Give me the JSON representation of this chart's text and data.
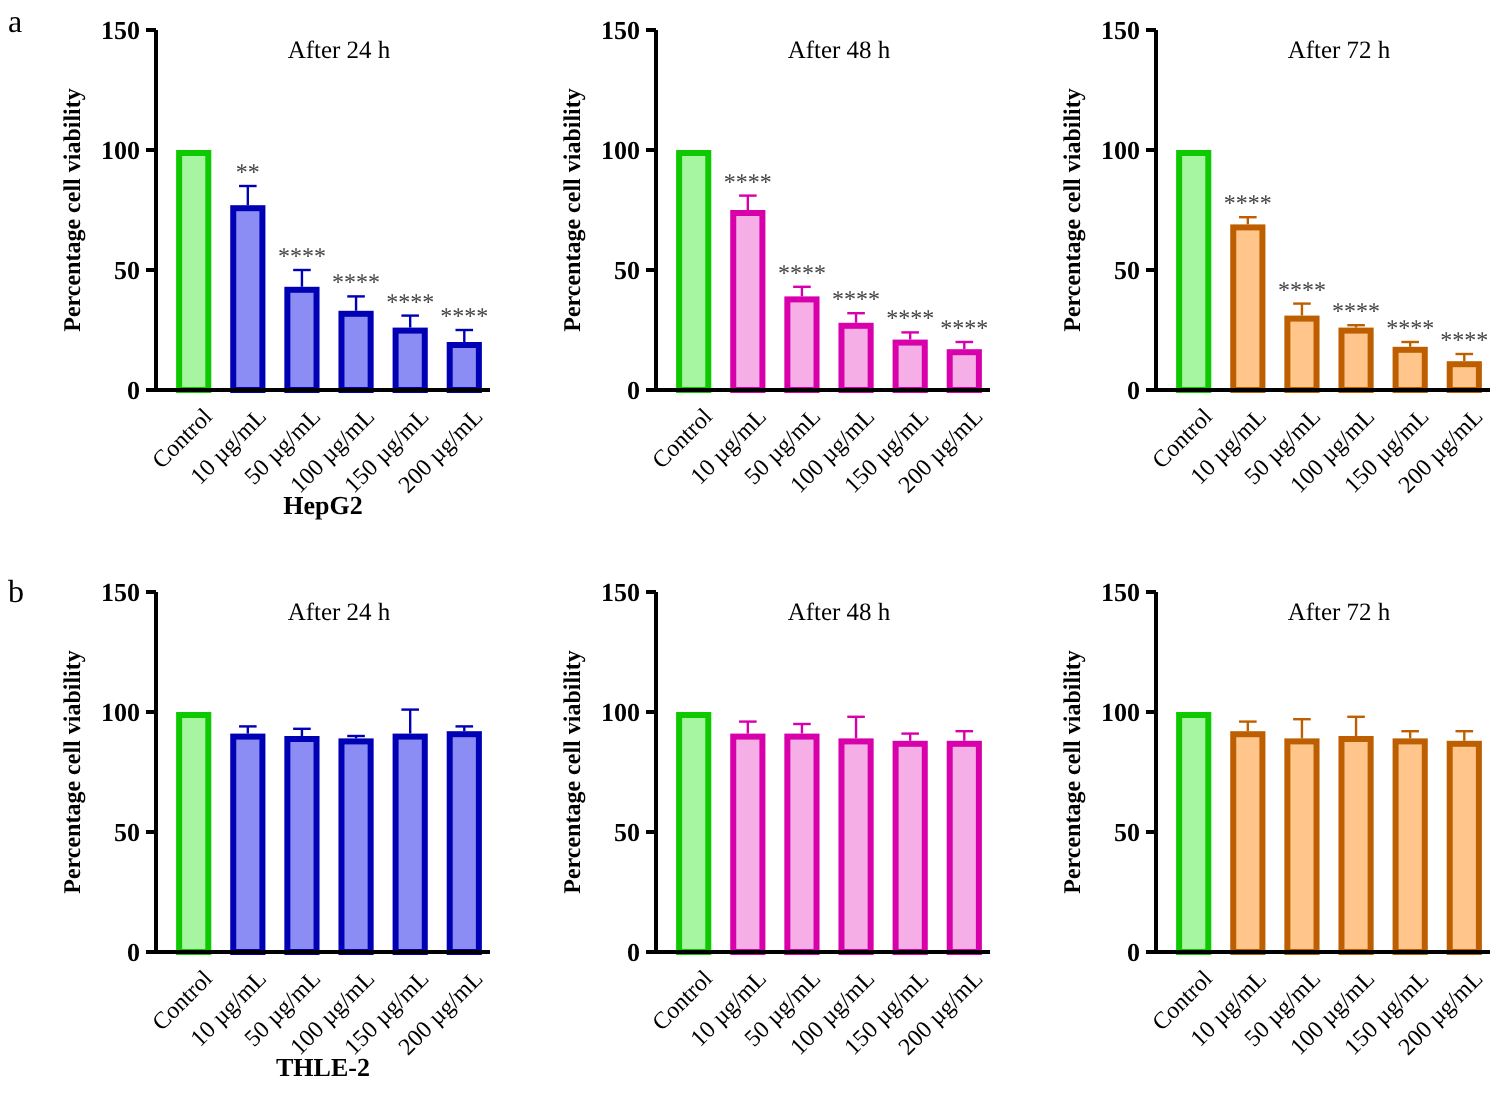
{
  "chart_data": [
    {
      "type": "bar",
      "title": "After 24 h",
      "ylabel": "Percentage cell viability",
      "categories": [
        "Control",
        "10 µg/mL",
        "50 µg/mL",
        "100 µg/mL",
        "150 µg/mL",
        "200 µg/mL"
      ],
      "values": [
        100,
        77,
        43,
        33,
        26,
        20
      ],
      "errors": [
        null,
        8,
        7,
        6,
        5,
        5
      ],
      "colors": [
        "#a6f5a0",
        "#8c8cf5",
        "#8c8cf5",
        "#8c8cf5",
        "#8c8cf5",
        "#8c8cf5"
      ],
      "ylim": [
        0,
        150
      ],
      "yticks": [
        0,
        50,
        100,
        150
      ],
      "grid": false,
      "annotations": [
        "a",
        "HepG2",
        {
          "text": "**",
          "x": "10 µg/mL",
          "y": 85
        },
        {
          "text": "****",
          "x": "50 µg/mL",
          "y": 50
        },
        {
          "text": "****",
          "x": "100 µg/mL",
          "y": 39
        },
        {
          "text": "****",
          "x": "150 µg/mL",
          "y": 31
        },
        {
          "text": "****",
          "x": "200 µg/mL",
          "y": 25
        }
      ]
    },
    {
      "type": "bar",
      "title": "After 48 h",
      "ylabel": "Percentage cell viability",
      "categories": [
        "Control",
        "10 µg/mL",
        "50 µg/mL",
        "100 µg/mL",
        "150 µg/mL",
        "200 µg/mL"
      ],
      "values": [
        100,
        75,
        39,
        28,
        21,
        17
      ],
      "errors": [
        null,
        6,
        4,
        4,
        3,
        3
      ],
      "colors": [
        "#a6f5a0",
        "#f5aee6",
        "#f5aee6",
        "#f5aee6",
        "#f5aee6",
        "#f5aee6"
      ],
      "ylim": [
        0,
        150
      ],
      "yticks": [
        0,
        50,
        100,
        150
      ],
      "grid": false,
      "annotations": [
        {
          "text": "****",
          "x": "10 µg/mL",
          "y": 81
        },
        {
          "text": "****",
          "x": "50 µg/mL",
          "y": 43
        },
        {
          "text": "****",
          "x": "100 µg/mL",
          "y": 32
        },
        {
          "text": "****",
          "x": "150 µg/mL",
          "y": 24
        },
        {
          "text": "****",
          "x": "200 µg/mL",
          "y": 20
        }
      ]
    },
    {
      "type": "bar",
      "title": "After 72 h",
      "ylabel": "Percentage cell viability",
      "categories": [
        "Control",
        "10 µg/mL",
        "50 µg/mL",
        "100 µg/mL",
        "150 µg/mL",
        "200 µg/mL"
      ],
      "values": [
        100,
        69,
        31,
        26,
        18,
        12
      ],
      "errors": [
        null,
        3,
        5,
        1,
        2,
        3
      ],
      "colors": [
        "#a6f5a0",
        "#ffc58a",
        "#ffc58a",
        "#ffc58a",
        "#ffc58a",
        "#ffc58a"
      ],
      "ylim": [
        0,
        150
      ],
      "yticks": [
        0,
        50,
        100,
        150
      ],
      "grid": false,
      "annotations": [
        {
          "text": "****",
          "x": "10 µg/mL",
          "y": 72
        },
        {
          "text": "****",
          "x": "50 µg/mL",
          "y": 36
        },
        {
          "text": "****",
          "x": "100 µg/mL",
          "y": 27
        },
        {
          "text": "****",
          "x": "150 µg/mL",
          "y": 20
        },
        {
          "text": "****",
          "x": "200 µg/mL",
          "y": 15
        }
      ]
    },
    {
      "type": "bar",
      "title": "After 24 h",
      "ylabel": "Percentage cell viability",
      "categories": [
        "Control",
        "10 µg/mL",
        "50 µg/mL",
        "100 µg/mL",
        "150 µg/mL",
        "200 µg/mL"
      ],
      "values": [
        100,
        91,
        90,
        89,
        91,
        92
      ],
      "errors": [
        null,
        3,
        3,
        1,
        10,
        2
      ],
      "colors": [
        "#a6f5a0",
        "#8c8cf5",
        "#8c8cf5",
        "#8c8cf5",
        "#8c8cf5",
        "#8c8cf5"
      ],
      "ylim": [
        0,
        150
      ],
      "yticks": [
        0,
        50,
        100,
        150
      ],
      "grid": false,
      "annotations": [
        "b",
        "THLE-2"
      ]
    },
    {
      "type": "bar",
      "title": "After 48 h",
      "ylabel": "Percentage cell viability",
      "categories": [
        "Control",
        "10 µg/mL",
        "50 µg/mL",
        "100 µg/mL",
        "150 µg/mL",
        "200 µg/mL"
      ],
      "values": [
        100,
        91,
        91,
        89,
        88,
        88
      ],
      "errors": [
        null,
        5,
        4,
        9,
        3,
        4
      ],
      "colors": [
        "#a6f5a0",
        "#f5aee6",
        "#f5aee6",
        "#f5aee6",
        "#f5aee6",
        "#f5aee6"
      ],
      "ylim": [
        0,
        150
      ],
      "yticks": [
        0,
        50,
        100,
        150
      ],
      "grid": false
    },
    {
      "type": "bar",
      "title": "After 72 h",
      "ylabel": "Percentage cell viability",
      "categories": [
        "Control",
        "10 µg/mL",
        "50 µg/mL",
        "100 µg/mL",
        "150 µg/mL",
        "200 µg/mL"
      ],
      "values": [
        100,
        92,
        89,
        90,
        89,
        88
      ],
      "errors": [
        null,
        4,
        8,
        8,
        3,
        4
      ],
      "colors": [
        "#a6f5a0",
        "#ffc58a",
        "#ffc58a",
        "#ffc58a",
        "#ffc58a",
        "#ffc58a"
      ],
      "ylim": [
        0,
        150
      ],
      "yticks": [
        0,
        50,
        100,
        150
      ],
      "grid": false
    }
  ]
}
